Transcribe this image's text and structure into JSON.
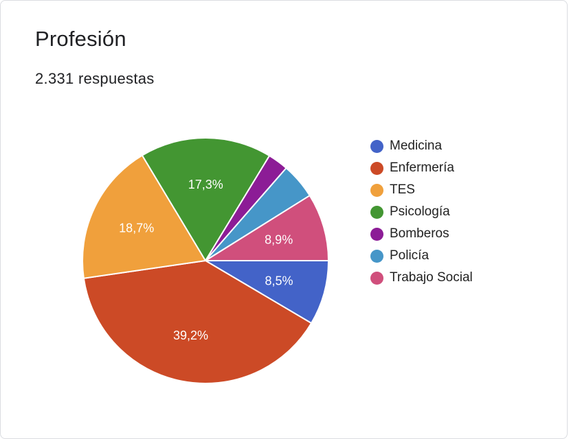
{
  "header": {
    "title": "Profesión",
    "responses": "2.331 respuestas"
  },
  "chart_data": {
    "type": "pie",
    "title": "Profesión",
    "start_angle_deg": 90,
    "direction": "clockwise",
    "slices": [
      {
        "name": "Medicina",
        "value": 8.5,
        "label": "8,5%",
        "color": "#4363c8"
      },
      {
        "name": "Enfermería",
        "value": 39.2,
        "label": "39,2%",
        "color": "#cc4a26"
      },
      {
        "name": "TES",
        "value": 18.7,
        "label": "18,7%",
        "color": "#f0a03c"
      },
      {
        "name": "Psicología",
        "value": 17.3,
        "label": "17,3%",
        "color": "#439632"
      },
      {
        "name": "Bomberos",
        "value": 2.7,
        "label": "",
        "color": "#8c1c96"
      },
      {
        "name": "Policía",
        "value": 4.7,
        "label": "",
        "color": "#4696c8"
      },
      {
        "name": "Trabajo Social",
        "value": 8.9,
        "label": "8,9%",
        "color": "#d04f7c"
      }
    ],
    "legend_position": "right"
  }
}
